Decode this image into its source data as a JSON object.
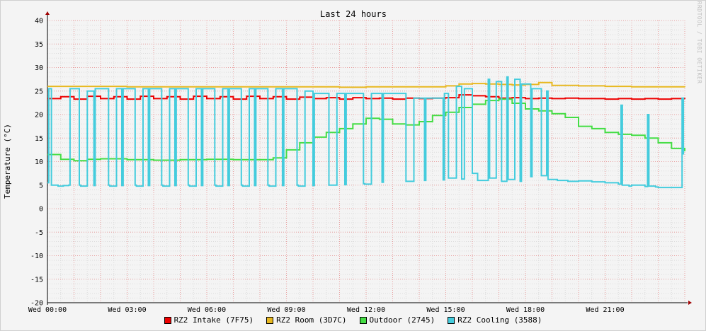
{
  "chart_data": {
    "type": "line",
    "title": "Last 24 hours",
    "ylabel": "Temperature (°C)",
    "xlabel": "",
    "ylim": [
      -20,
      40
    ],
    "yticks": [
      40,
      35,
      30,
      25,
      20,
      15,
      10,
      5,
      0,
      -5,
      -10,
      -15,
      -20
    ],
    "xlim": [
      0,
      24
    ],
    "xticks": [
      {
        "x": 0,
        "label": "Wed 00:00"
      },
      {
        "x": 3,
        "label": "Wed 03:00"
      },
      {
        "x": 6,
        "label": "Wed 06:00"
      },
      {
        "x": 9,
        "label": "Wed 09:00"
      },
      {
        "x": 12,
        "label": "Wed 12:00"
      },
      {
        "x": 15,
        "label": "Wed 15:00"
      },
      {
        "x": 18,
        "label": "Wed 18:00"
      },
      {
        "x": 21,
        "label": "Wed 21:00"
      }
    ],
    "grid": true,
    "legend_position": "bottom",
    "watermark": "RRDTOOL / TOBI OETIKER",
    "series": [
      {
        "name": "RZ2 Intake (7F75)",
        "color": "#ee0000",
        "x": [
          0,
          0.5,
          1,
          1.5,
          2,
          2.5,
          3,
          3.5,
          4,
          4.5,
          5,
          5.5,
          6,
          6.5,
          7,
          7.5,
          8,
          8.5,
          9,
          9.5,
          10,
          10.5,
          11,
          11.5,
          12,
          12.5,
          13,
          13.5,
          14,
          14.5,
          15,
          15.5,
          16,
          16.5,
          17,
          17.5,
          18,
          18.5,
          19,
          19.5,
          20,
          20.5,
          21,
          21.5,
          22,
          22.5,
          23,
          23.5,
          24
        ],
        "y": [
          23.4,
          23.8,
          23.3,
          23.9,
          23.4,
          23.8,
          23.3,
          23.9,
          23.4,
          23.8,
          23.3,
          23.9,
          23.4,
          23.8,
          23.3,
          23.9,
          23.4,
          23.8,
          23.3,
          23.7,
          23.4,
          23.6,
          23.3,
          23.6,
          23.4,
          23.5,
          23.3,
          23.5,
          23.4,
          23.5,
          23.6,
          24.2,
          24.0,
          23.8,
          23.5,
          23.6,
          23.4,
          23.5,
          23.4,
          23.5,
          23.4,
          23.4,
          23.3,
          23.4,
          23.3,
          23.4,
          23.3,
          23.4,
          23.3
        ]
      },
      {
        "name": "RZ2 Room (3D7C)",
        "color": "#e8b820",
        "x": [
          0,
          1,
          2,
          3,
          4,
          5,
          6,
          7,
          8,
          9,
          10,
          11,
          12,
          13,
          14,
          15,
          15.5,
          16,
          16.5,
          17,
          17.5,
          18,
          18.5,
          19,
          20,
          21,
          22,
          23,
          24
        ],
        "y": [
          26.0,
          26.0,
          26.0,
          25.9,
          25.9,
          25.9,
          25.9,
          25.9,
          25.9,
          25.9,
          25.9,
          25.8,
          25.9,
          25.9,
          25.9,
          26.1,
          26.5,
          26.6,
          26.5,
          26.4,
          26.3,
          26.4,
          26.8,
          26.2,
          26.1,
          26.0,
          25.9,
          25.9,
          25.8
        ]
      },
      {
        "name": "Outdoor (2745)",
        "color": "#44dd44",
        "x": [
          0,
          0.5,
          1,
          1.5,
          2,
          3,
          4,
          5,
          6,
          7,
          8,
          8.5,
          9,
          9.5,
          10,
          10.5,
          11,
          11.5,
          12,
          12.5,
          13,
          13.5,
          14,
          14.5,
          15,
          15.5,
          16,
          16.5,
          17,
          17.5,
          18,
          18.5,
          19,
          19.5,
          20,
          20.5,
          21,
          21.5,
          22,
          22.5,
          23,
          23.5,
          24
        ],
        "y": [
          11.5,
          10.5,
          10.2,
          10.5,
          10.6,
          10.4,
          10.3,
          10.4,
          10.5,
          10.4,
          10.4,
          10.8,
          12.5,
          14.0,
          15.2,
          16.2,
          17.0,
          18.0,
          19.2,
          19.0,
          18.0,
          17.8,
          18.5,
          19.8,
          20.5,
          21.5,
          22.2,
          23.0,
          23.3,
          22.4,
          21.2,
          20.8,
          20.2,
          19.4,
          17.5,
          17.0,
          16.2,
          15.8,
          15.6,
          15.0,
          14.0,
          12.8,
          12.2
        ]
      },
      {
        "name": "RZ2 Cooling (3588)",
        "color": "#44ccdd",
        "x": [
          0,
          0.05,
          0.15,
          0.4,
          0.6,
          0.8,
          0.85,
          1.2,
          1.25,
          1.5,
          1.75,
          1.8,
          2.3,
          2.35,
          2.6,
          2.8,
          2.85,
          3.3,
          3.35,
          3.6,
          3.8,
          3.85,
          4.3,
          4.35,
          4.6,
          4.8,
          4.85,
          5.3,
          5.35,
          5.6,
          5.8,
          5.85,
          6.3,
          6.35,
          6.6,
          6.8,
          6.85,
          7.3,
          7.35,
          7.6,
          7.8,
          7.85,
          8.3,
          8.35,
          8.6,
          8.85,
          8.9,
          9.4,
          9.45,
          9.7,
          10.0,
          10.05,
          10.6,
          10.65,
          10.9,
          11.2,
          11.25,
          11.9,
          11.95,
          12.2,
          12.6,
          12.65,
          13.5,
          13.55,
          13.8,
          14.2,
          14.25,
          14.9,
          14.95,
          15.1,
          15.4,
          15.6,
          15.7,
          16.0,
          16.2,
          16.6,
          16.65,
          16.9,
          17.1,
          17.3,
          17.35,
          17.6,
          17.8,
          17.85,
          18.2,
          18.25,
          18.6,
          18.8,
          18.85,
          19.2,
          19.6,
          20.0,
          20.5,
          21.0,
          21.5,
          21.6,
          21.65,
          21.9,
          22.0,
          22.5,
          22.6,
          22.65,
          22.9,
          23.0,
          23.5,
          23.9,
          23.95
        ],
        "y": [
          5.5,
          25.5,
          5.0,
          4.8,
          4.9,
          5.0,
          25.5,
          5.0,
          4.8,
          25.0,
          4.9,
          25.5,
          5.0,
          4.8,
          25.5,
          4.9,
          25.5,
          5.0,
          4.8,
          25.5,
          4.9,
          25.5,
          5.0,
          4.8,
          25.5,
          4.9,
          25.5,
          5.0,
          4.8,
          25.5,
          4.9,
          25.5,
          5.0,
          4.8,
          25.5,
          4.9,
          25.5,
          5.0,
          4.8,
          25.5,
          4.9,
          25.5,
          5.0,
          4.8,
          25.5,
          4.9,
          25.5,
          5.0,
          4.8,
          25.0,
          4.9,
          24.5,
          5.0,
          5.0,
          24.5,
          5.1,
          24.5,
          5.3,
          5.2,
          24.5,
          5.6,
          24.5,
          5.8,
          5.8,
          23.5,
          6.0,
          23.5,
          6.1,
          24.5,
          6.5,
          26.0,
          6.3,
          25.5,
          7.5,
          6.0,
          27.5,
          6.5,
          27.0,
          5.8,
          28.0,
          6.2,
          27.5,
          5.8,
          26.5,
          6.8,
          25.5,
          7.0,
          25.0,
          6.2,
          6.0,
          5.8,
          5.9,
          5.7,
          5.5,
          5.2,
          22.0,
          5.0,
          4.8,
          5.0,
          4.7,
          20.0,
          4.8,
          4.6,
          4.5,
          4.5,
          23.5,
          11.5
        ]
      }
    ]
  }
}
